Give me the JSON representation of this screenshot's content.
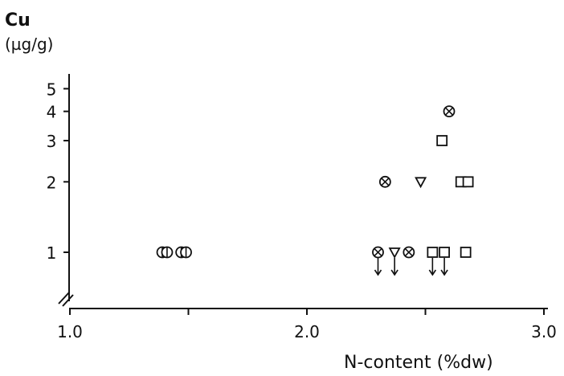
{
  "chart_data": {
    "type": "scatter",
    "title": "",
    "ylabel": "Cu",
    "ylabel_unit": "(µg/g)",
    "xlabel": "N-content (%dw)",
    "x_scale": "linear",
    "y_scale": "log",
    "xlim": [
      1.0,
      3.05
    ],
    "ylim": [
      0.6,
      6.5
    ],
    "x_ticks": [
      1.0,
      1.5,
      2.0,
      2.5,
      3.0
    ],
    "x_tick_labels": [
      "1.0",
      "",
      "2.0",
      "",
      "3.0"
    ],
    "y_ticks": [
      1,
      2,
      3,
      4,
      5
    ],
    "y_tick_labels": [
      "1",
      "2",
      "3",
      "4",
      "5"
    ],
    "axis_break": true,
    "grid": false,
    "series": [
      {
        "marker": "circle-bar",
        "points": [
          {
            "x": 1.39,
            "y": 1
          },
          {
            "x": 1.41,
            "y": 1
          },
          {
            "x": 1.47,
            "y": 1
          },
          {
            "x": 1.49,
            "y": 1
          }
        ]
      },
      {
        "marker": "circle-x",
        "points": [
          {
            "x": 2.3,
            "y": 1,
            "below_detection": true
          },
          {
            "x": 2.43,
            "y": 1
          },
          {
            "x": 2.33,
            "y": 2
          },
          {
            "x": 2.6,
            "y": 4
          }
        ]
      },
      {
        "marker": "triangle-down",
        "points": [
          {
            "x": 2.37,
            "y": 1,
            "below_detection": true
          },
          {
            "x": 2.48,
            "y": 2
          }
        ]
      },
      {
        "marker": "square",
        "points": [
          {
            "x": 2.53,
            "y": 1,
            "below_detection": true
          },
          {
            "x": 2.58,
            "y": 1,
            "below_detection": true
          },
          {
            "x": 2.67,
            "y": 1
          },
          {
            "x": 2.57,
            "y": 3
          },
          {
            "x": 2.65,
            "y": 2
          },
          {
            "x": 2.68,
            "y": 2
          }
        ]
      }
    ]
  }
}
